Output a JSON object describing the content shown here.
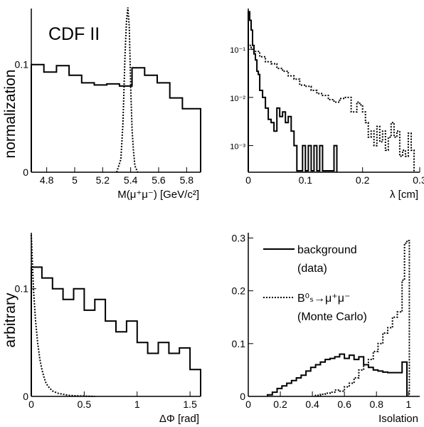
{
  "figure": {
    "label": "CDF II",
    "ylabel_top": "normalization",
    "ylabel_bottom": "arbitrary"
  },
  "legend": {
    "background": {
      "line1": "background",
      "line2": "(data)"
    },
    "signal": {
      "line1": "B⁰ₛ→μ⁺μ⁻",
      "line2": "(Monte Carlo)"
    }
  },
  "chart_data": [
    {
      "id": "mass",
      "type": "line",
      "xlabel": "M(μ⁺μ⁻)  [GeV/c²]",
      "xlim": [
        4.69,
        5.9
      ],
      "ylim": [
        0,
        0.152
      ],
      "yscale": "linear",
      "xticks": [
        4.8,
        5,
        5.2,
        5.4,
        5.6,
        5.8
      ],
      "xtick_labels": [
        "4.8",
        "5",
        "5.2",
        "5.4",
        "5.6",
        "5.8"
      ],
      "yticks": [
        0,
        0.1
      ],
      "ytick_labels": [
        "0",
        "0.1"
      ],
      "series": [
        {
          "style": "solid",
          "edges": [
            4.69,
            4.78,
            4.87,
            4.96,
            5.05,
            5.14,
            5.23,
            5.32,
            5.41,
            5.5,
            5.59,
            5.68,
            5.77,
            5.9
          ],
          "values": [
            0.1,
            0.093,
            0.099,
            0.09,
            0.083,
            0.081,
            0.082,
            0.08,
            0.097,
            0.09,
            0.083,
            0.069,
            0.059
          ]
        },
        {
          "style": "dotted",
          "x": [
            5.3,
            5.33,
            5.345,
            5.36,
            5.37,
            5.38,
            5.39,
            5.4,
            5.41,
            5.42,
            5.43,
            5.45
          ],
          "y": [
            0,
            0.012,
            0.045,
            0.11,
            0.14,
            0.153,
            0.135,
            0.08,
            0.04,
            0.02,
            0.006,
            0
          ]
        }
      ]
    },
    {
      "id": "lambda",
      "type": "line",
      "xlabel": "λ  [cm]",
      "xlim": [
        0,
        0.3
      ],
      "ylim": [
        0.00028,
        0.7
      ],
      "yscale": "log",
      "xticks": [
        0,
        0.1,
        0.2,
        0.3
      ],
      "xtick_labels": [
        "0",
        "0.1",
        "0.2",
        "0.3"
      ],
      "yticks": [
        0.001,
        0.01,
        0.1
      ],
      "ytick_labels": [
        "10⁻³",
        "10⁻²",
        "10⁻¹"
      ],
      "series": [
        {
          "style": "solid",
          "edges": [
            0,
            0.0025,
            0.005,
            0.0075,
            0.01,
            0.0125,
            0.015,
            0.0175,
            0.02,
            0.025,
            0.03,
            0.035,
            0.04,
            0.045,
            0.05,
            0.055,
            0.06,
            0.065,
            0.07,
            0.075,
            0.08,
            0.085,
            0.09,
            0.095,
            0.1,
            0.105,
            0.11,
            0.115,
            0.12,
            0.125,
            0.13,
            0.135,
            0.14,
            0.145,
            0.15,
            0.155
          ],
          "values": [
            0.6,
            0.4,
            0.25,
            0.12,
            0.08,
            0.06,
            0.035,
            0.03,
            0.014,
            0.01,
            0.006,
            0.0035,
            0.003,
            0.002,
            0.006,
            0.004,
            0.005,
            0.003,
            0.004,
            0.002,
            0.001,
            0.0003,
            0.0003,
            0.001,
            0.0003,
            0.001,
            0.0003,
            0.001,
            0.0003,
            0.001,
            0.0003,
            0.0003,
            0.0003,
            0.0003,
            0.001
          ]
        },
        {
          "style": "dotted",
          "edges": [
            0,
            0.005,
            0.01,
            0.02,
            0.03,
            0.04,
            0.05,
            0.06,
            0.07,
            0.08,
            0.09,
            0.1,
            0.11,
            0.12,
            0.13,
            0.14,
            0.15,
            0.16,
            0.17,
            0.18,
            0.19,
            0.195,
            0.2,
            0.205,
            0.21,
            0.215,
            0.22,
            0.225,
            0.23,
            0.235,
            0.24,
            0.245,
            0.25,
            0.255,
            0.26,
            0.265,
            0.27,
            0.275,
            0.28,
            0.285,
            0.29
          ],
          "values": [
            0.12,
            0.1,
            0.09,
            0.07,
            0.055,
            0.05,
            0.04,
            0.035,
            0.028,
            0.024,
            0.018,
            0.017,
            0.014,
            0.012,
            0.011,
            0.009,
            0.008,
            0.0095,
            0.01,
            0.005,
            0.008,
            0.007,
            0.005,
            0.003,
            0.0015,
            0.002,
            0.001,
            0.0025,
            0.0012,
            0.002,
            0.0008,
            0.0015,
            0.003,
            0.0015,
            0.002,
            0.0006,
            0.0008,
            0.0006,
            0.0018,
            0.0008
          ]
        }
      ]
    },
    {
      "id": "dphi",
      "type": "line",
      "xlabel": "ΔΦ  [rad]",
      "xlim": [
        0,
        1.6
      ],
      "ylim": [
        0,
        0.152
      ],
      "yscale": "linear",
      "xticks": [
        0,
        0.5,
        1,
        1.5
      ],
      "xtick_labels": [
        "0",
        "0.5",
        "1",
        "1.5"
      ],
      "yticks": [
        0,
        0.1
      ],
      "ytick_labels": [
        "0",
        "0.1"
      ],
      "series": [
        {
          "style": "solid",
          "edges": [
            0,
            0.1,
            0.2,
            0.3,
            0.4,
            0.5,
            0.6,
            0.7,
            0.8,
            0.9,
            1.0,
            1.1,
            1.2,
            1.3,
            1.4,
            1.5,
            1.6
          ],
          "values": [
            0.12,
            0.11,
            0.1,
            0.09,
            0.1,
            0.08,
            0.09,
            0.07,
            0.06,
            0.07,
            0.05,
            0.04,
            0.05,
            0.04,
            0.045,
            0.025
          ]
        },
        {
          "style": "dotted",
          "x": [
            0,
            0.02,
            0.04,
            0.06,
            0.08,
            0.1,
            0.12,
            0.14,
            0.17,
            0.2,
            0.25,
            0.3,
            0.35,
            0.4,
            0.5,
            0.6
          ],
          "y": [
            0.15,
            0.1,
            0.07,
            0.05,
            0.035,
            0.025,
            0.018,
            0.012,
            0.008,
            0.005,
            0.003,
            0.002,
            0.001,
            0.0007,
            0.0003,
            0
          ]
        }
      ]
    },
    {
      "id": "isolation",
      "type": "line",
      "xlabel": "Isolation",
      "xlim": [
        0,
        1.07
      ],
      "ylim": [
        0,
        0.31
      ],
      "yscale": "linear",
      "xticks": [
        0,
        0.2,
        0.4,
        0.6,
        0.8,
        1
      ],
      "xtick_labels": [
        "0",
        "0.2",
        "0.4",
        "0.6",
        "0.8",
        "1"
      ],
      "yticks": [
        0,
        0.1,
        0.2,
        0.3
      ],
      "ytick_labels": [
        "0",
        "0.1",
        "0.2",
        "0.3"
      ],
      "series": [
        {
          "style": "solid",
          "edges": [
            0.12,
            0.15,
            0.18,
            0.21,
            0.24,
            0.27,
            0.3,
            0.33,
            0.36,
            0.39,
            0.42,
            0.45,
            0.48,
            0.51,
            0.54,
            0.57,
            0.6,
            0.63,
            0.66,
            0.69,
            0.72,
            0.75,
            0.78,
            0.81,
            0.84,
            0.87,
            0.9,
            0.93,
            0.96,
            0.99
          ],
          "values": [
            0.003,
            0.008,
            0.015,
            0.02,
            0.025,
            0.03,
            0.035,
            0.04,
            0.048,
            0.055,
            0.06,
            0.065,
            0.07,
            0.072,
            0.075,
            0.08,
            0.072,
            0.078,
            0.07,
            0.075,
            0.06,
            0.055,
            0.05,
            0.048,
            0.046,
            0.045,
            0.045,
            0.045,
            0.065
          ]
        },
        {
          "style": "dotted",
          "edges": [
            0.42,
            0.45,
            0.48,
            0.51,
            0.54,
            0.57,
            0.6,
            0.63,
            0.66,
            0.69,
            0.72,
            0.75,
            0.78,
            0.81,
            0.84,
            0.87,
            0.9,
            0.93,
            0.96,
            0.975,
            0.99,
            1.005
          ],
          "values": [
            0.002,
            0.004,
            0.006,
            0.008,
            0.012,
            0.01,
            0.018,
            0.025,
            0.035,
            0.05,
            0.06,
            0.07,
            0.085,
            0.1,
            0.12,
            0.13,
            0.15,
            0.16,
            0.22,
            0.29,
            0.295
          ]
        }
      ]
    }
  ]
}
